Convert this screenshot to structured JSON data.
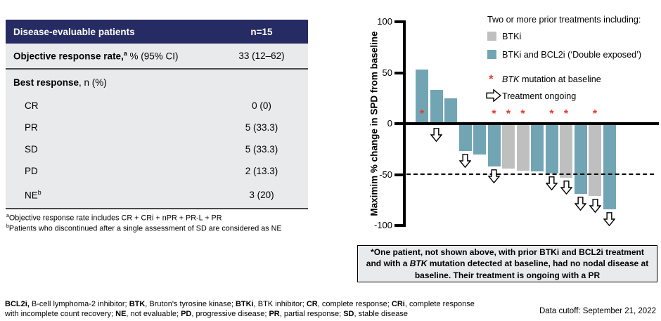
{
  "table": {
    "header": {
      "label": "Disease-evaluable patients",
      "value": "n=15"
    },
    "rows": [
      {
        "label_rich": [
          {
            "t": "Objective response rate,",
            "b": true
          },
          {
            "t": "a",
            "b": true,
            "sup": true
          },
          {
            "t": " % (95% CI)"
          }
        ],
        "value": "33 (12–62)",
        "indent": false,
        "divider": true
      },
      {
        "label_rich": [
          {
            "t": "Best response",
            "b": true
          },
          {
            "t": ", n (%)"
          }
        ],
        "value": "",
        "indent": false,
        "divider": false
      },
      {
        "label_rich": [
          {
            "t": "CR"
          }
        ],
        "value": "0 (0)",
        "indent": true,
        "divider": false
      },
      {
        "label_rich": [
          {
            "t": "PR"
          }
        ],
        "value": "5 (33.3)",
        "indent": true,
        "divider": false
      },
      {
        "label_rich": [
          {
            "t": "SD"
          }
        ],
        "value": "5 (33.3)",
        "indent": true,
        "divider": false
      },
      {
        "label_rich": [
          {
            "t": "PD"
          }
        ],
        "value": "2 (13.3)",
        "indent": true,
        "divider": false
      },
      {
        "label_rich": [
          {
            "t": "NE"
          },
          {
            "t": "b",
            "sup": true
          }
        ],
        "value": "3 (20)",
        "indent": true,
        "divider": false
      }
    ],
    "footnotes": [
      [
        {
          "t": "a",
          "sup": true
        },
        {
          "t": "Objective response rate includes CR + CRi + nPR + PR-L + PR"
        }
      ],
      [
        {
          "t": "b",
          "sup": true
        },
        {
          "t": "Patients who discontinued after a single assessment of SD are considered as NE"
        }
      ]
    ]
  },
  "chart_data": {
    "type": "bar",
    "subtype": "waterfall",
    "title": "",
    "xlabel": "",
    "ylabel": "Maximim % change in SPD from baseline",
    "yticks": [
      100,
      50,
      0,
      -50,
      -100
    ],
    "ylim": [
      -100,
      100
    ],
    "reference_line_y": -50,
    "grid": false,
    "legend_position": "top-right",
    "series_colors": {
      "btki": "#BFBFBF",
      "double_exposed": "#72A5B4"
    },
    "asterisk_color": "#E8392E",
    "patients": [
      {
        "value": 53,
        "group": "double_exposed",
        "btk_mutation": true,
        "ongoing": false
      },
      {
        "value": 33,
        "group": "double_exposed",
        "btk_mutation": false,
        "ongoing": true
      },
      {
        "value": 25,
        "group": "double_exposed",
        "btk_mutation": false,
        "ongoing": false
      },
      {
        "value": -27,
        "group": "double_exposed",
        "btk_mutation": false,
        "ongoing": true
      },
      {
        "value": -30,
        "group": "double_exposed",
        "btk_mutation": false,
        "ongoing": false
      },
      {
        "value": -42,
        "group": "double_exposed",
        "btk_mutation": true,
        "ongoing": true
      },
      {
        "value": -44,
        "group": "btki",
        "btk_mutation": true,
        "ongoing": false
      },
      {
        "value": -46,
        "group": "btki",
        "btk_mutation": true,
        "ongoing": false
      },
      {
        "value": -47,
        "group": "double_exposed",
        "btk_mutation": false,
        "ongoing": false
      },
      {
        "value": -49,
        "group": "double_exposed",
        "btk_mutation": true,
        "ongoing": true
      },
      {
        "value": -53,
        "group": "btki",
        "btk_mutation": true,
        "ongoing": true
      },
      {
        "value": -69,
        "group": "double_exposed",
        "btk_mutation": false,
        "ongoing": true
      },
      {
        "value": -71,
        "group": "btki",
        "btk_mutation": true,
        "ongoing": true
      },
      {
        "value": -84,
        "group": "double_exposed",
        "btk_mutation": false,
        "ongoing": true
      }
    ]
  },
  "legend": {
    "title": "Two or more prior treatments including:",
    "items": [
      {
        "swatch": "#BFBFBF",
        "label": "BTKi"
      },
      {
        "swatch": "#72A5B4",
        "label": "BTKi and BCL2i (‘Double exposed’)"
      }
    ],
    "mutation_rich": [
      {
        "t": "BTK",
        "i": true
      },
      {
        "t": " mutation at baseline"
      }
    ],
    "ongoing_label": "Treatment ongoing"
  },
  "callout_box": {
    "text_rich": [
      {
        "t": "*One patient, not shown above, with prior BTKi and BCL2i treatment and with a "
      },
      {
        "t": "BTK",
        "i": true
      },
      {
        "t": " mutation detected at baseline, had no nodal disease at baseline. Their treatment is ongoing with a PR"
      }
    ]
  },
  "footer": {
    "abbreviations_rich": [
      {
        "t": "BCL2i,",
        "b": true
      },
      {
        "t": " B-cell lymphoma-2 inhibitor; "
      },
      {
        "t": "BTK",
        "b": true
      },
      {
        "t": ", Bruton's tyrosine kinase; "
      },
      {
        "t": "BTKi",
        "b": true
      },
      {
        "t": ", BTK inhibitor; "
      },
      {
        "t": "CR",
        "b": true
      },
      {
        "t": ", complete response; "
      },
      {
        "t": "CRi",
        "b": true
      },
      {
        "t": ", complete response with incomplete count recovery; "
      },
      {
        "t": "NE",
        "b": true
      },
      {
        "t": ", not evaluable; "
      },
      {
        "t": "PD",
        "b": true
      },
      {
        "t": ", progressive disease; "
      },
      {
        "t": "PR",
        "b": true
      },
      {
        "t": ", partial response; "
      },
      {
        "t": "SD",
        "b": true
      },
      {
        "t": ", stable disease"
      }
    ],
    "data_cutoff": "Data cutoff: September 21, 2022"
  }
}
